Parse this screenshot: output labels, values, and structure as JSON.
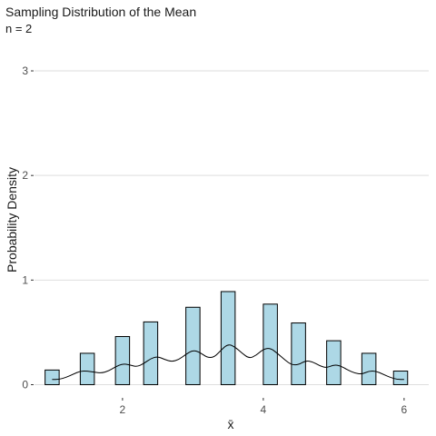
{
  "chart_data": {
    "type": "bar",
    "title": "Sampling Distribution of the Mean",
    "subtitle": "n =  2",
    "xlabel": "x̄",
    "ylabel": "Probability Density",
    "xlim": [
      0.75,
      6.35
    ],
    "ylim": [
      -0.1,
      3.2
    ],
    "x_ticks": [
      2,
      4,
      6
    ],
    "y_ticks": [
      0,
      1,
      2,
      3
    ],
    "grid": "horizontal",
    "bar_color": "#add8e6",
    "bar_width": 0.2,
    "bars": [
      {
        "x": 1.0,
        "y": 0.14
      },
      {
        "x": 1.5,
        "y": 0.3
      },
      {
        "x": 2.0,
        "y": 0.46
      },
      {
        "x": 2.4,
        "y": 0.6
      },
      {
        "x": 3.0,
        "y": 0.74
      },
      {
        "x": 3.5,
        "y": 0.89
      },
      {
        "x": 4.1,
        "y": 0.77
      },
      {
        "x": 4.5,
        "y": 0.59
      },
      {
        "x": 5.0,
        "y": 0.42
      },
      {
        "x": 5.5,
        "y": 0.3
      },
      {
        "x": 5.95,
        "y": 0.13
      }
    ],
    "density_curve": [
      [
        1.0,
        0.05
      ],
      [
        1.1,
        0.05
      ],
      [
        1.2,
        0.07
      ],
      [
        1.3,
        0.1
      ],
      [
        1.4,
        0.13
      ],
      [
        1.5,
        0.13
      ],
      [
        1.6,
        0.12
      ],
      [
        1.7,
        0.11
      ],
      [
        1.8,
        0.13
      ],
      [
        1.9,
        0.17
      ],
      [
        2.0,
        0.2
      ],
      [
        2.1,
        0.19
      ],
      [
        2.2,
        0.17
      ],
      [
        2.3,
        0.2
      ],
      [
        2.4,
        0.25
      ],
      [
        2.5,
        0.27
      ],
      [
        2.6,
        0.24
      ],
      [
        2.7,
        0.22
      ],
      [
        2.8,
        0.24
      ],
      [
        2.9,
        0.29
      ],
      [
        3.0,
        0.33
      ],
      [
        3.1,
        0.31
      ],
      [
        3.2,
        0.26
      ],
      [
        3.3,
        0.26
      ],
      [
        3.4,
        0.33
      ],
      [
        3.5,
        0.39
      ],
      [
        3.6,
        0.36
      ],
      [
        3.7,
        0.3
      ],
      [
        3.8,
        0.25
      ],
      [
        3.9,
        0.28
      ],
      [
        4.0,
        0.34
      ],
      [
        4.1,
        0.35
      ],
      [
        4.2,
        0.3
      ],
      [
        4.3,
        0.24
      ],
      [
        4.4,
        0.19
      ],
      [
        4.5,
        0.19
      ],
      [
        4.6,
        0.23
      ],
      [
        4.7,
        0.22
      ],
      [
        4.8,
        0.18
      ],
      [
        4.9,
        0.16
      ],
      [
        5.0,
        0.19
      ],
      [
        5.1,
        0.18
      ],
      [
        5.2,
        0.14
      ],
      [
        5.3,
        0.11
      ],
      [
        5.4,
        0.1
      ],
      [
        5.5,
        0.13
      ],
      [
        5.6,
        0.13
      ],
      [
        5.7,
        0.1
      ],
      [
        5.8,
        0.07
      ],
      [
        5.9,
        0.05
      ],
      [
        6.0,
        0.05
      ]
    ]
  }
}
